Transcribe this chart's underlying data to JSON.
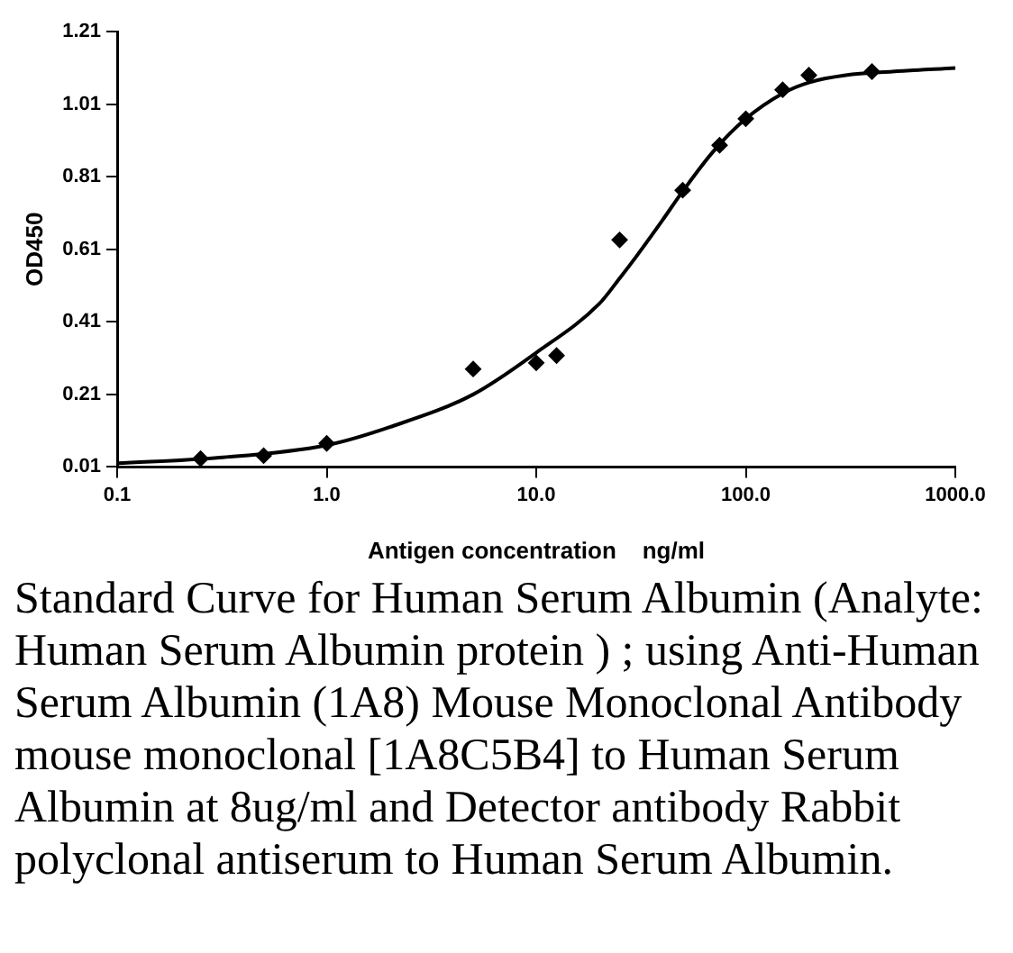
{
  "chart_data": {
    "type": "scatter",
    "xlabel": "Antigen concentration    ng/ml",
    "ylabel": "OD450",
    "log": "x",
    "grid": false,
    "xlim": [
      0.1,
      1000
    ],
    "xticks": [
      {
        "value": 0.1,
        "label": "0.1"
      },
      {
        "value": 1,
        "label": "1.0"
      },
      {
        "value": 10,
        "label": "10.0"
      },
      {
        "value": 100,
        "label": "100.0"
      },
      {
        "value": 1000,
        "label": "1000.0"
      }
    ],
    "ylim": [
      0.01,
      1.21
    ],
    "yticks": [
      0.01,
      0.21,
      0.41,
      0.61,
      0.81,
      1.01,
      1.21
    ],
    "series": [
      {
        "marker": "diamond",
        "color": "#000000",
        "x": [
          0.25,
          0.5,
          1,
          5,
          10,
          12.5,
          25,
          50,
          75,
          100,
          150,
          200,
          400
        ],
        "values": [
          0.033,
          0.041,
          0.075,
          0.28,
          0.297,
          0.317,
          0.636,
          0.773,
          0.897,
          0.97,
          1.05,
          1.09,
          1.1
        ]
      },
      {
        "type": "line",
        "marker": "none",
        "color": "#000000",
        "line_style": "solid",
        "x": [
          0.1,
          0.3,
          1,
          2,
          5,
          10,
          20,
          25,
          30,
          40,
          50,
          70,
          100,
          150,
          200,
          300,
          500,
          1000
        ],
        "values": [
          0.02,
          0.035,
          0.07,
          0.12,
          0.21,
          0.325,
          0.46,
          0.53,
          0.59,
          0.69,
          0.77,
          0.88,
          0.97,
          1.04,
          1.07,
          1.09,
          1.1,
          1.11
        ]
      }
    ],
    "annotations": [
      "Standard Curve for Human Serum Albumin (Analyte: Human Serum Albumin protein ) ; using Anti-Human Serum Albumin (1A8) Mouse Monoclonal Antibody mouse monoclonal [1A8C5B4] to Human Serum Albumin at 8ug/ml and Detector antibody Rabbit polyclonal antiserum to Human Serum Albumin."
    ]
  }
}
